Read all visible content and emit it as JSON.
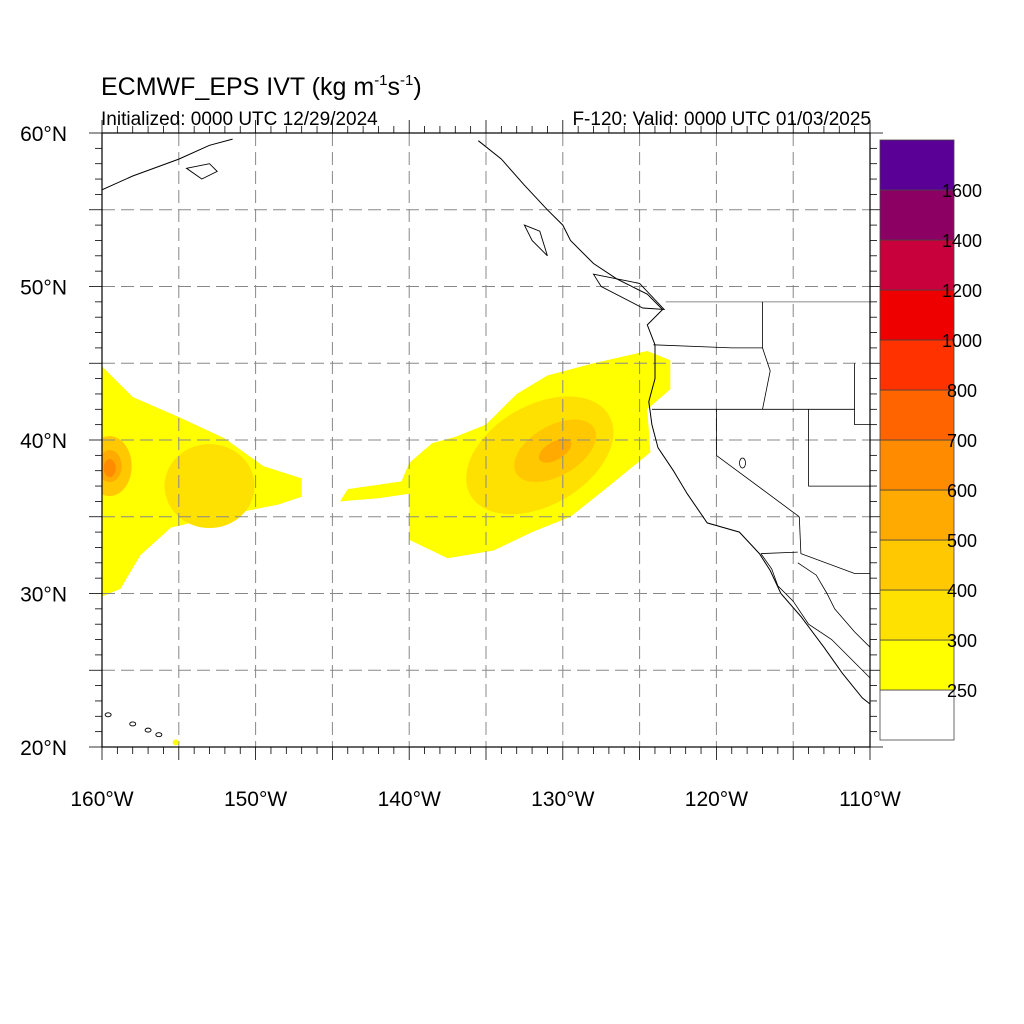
{
  "title": {
    "model": "ECMWF_EPS IVT (kg m",
    "exp1": "-1",
    "mid": "s",
    "exp2": "-1",
    "close": ")"
  },
  "subtitle": {
    "initialized": "Initialized: 0000 UTC 12/29/2024",
    "valid": "F-120: Valid: 0000 UTC 01/03/2025"
  },
  "map": {
    "lon_range": [
      -160,
      -110
    ],
    "lat_range": [
      20,
      60
    ],
    "grid_step_deg": 5,
    "x_tick_labels": [
      {
        "lon": -160,
        "label": "160°W"
      },
      {
        "lon": -150,
        "label": "150°W"
      },
      {
        "lon": -140,
        "label": "140°W"
      },
      {
        "lon": -130,
        "label": "130°W"
      },
      {
        "lon": -120,
        "label": "120°W"
      },
      {
        "lon": -110,
        "label": "110°W"
      }
    ],
    "y_tick_labels": [
      {
        "lat": 60,
        "label": "60°N"
      },
      {
        "lat": 50,
        "label": "50°N"
      },
      {
        "lat": 40,
        "label": "40°N"
      },
      {
        "lat": 30,
        "label": "30°N"
      },
      {
        "lat": 20,
        "label": "20°N"
      }
    ],
    "colorbar": {
      "labels": [
        "250",
        "300",
        "400",
        "500",
        "600",
        "700",
        "800",
        "1000",
        "1200",
        "1400",
        "1600"
      ],
      "colors": [
        "#ffffff",
        "#ffff00",
        "#ffe100",
        "#ffc800",
        "#ffaa00",
        "#ff8c00",
        "#ff6400",
        "#ff3200",
        "#ee0000",
        "#c8003c",
        "#8c0064",
        "#5a0096"
      ]
    },
    "ivt_fields": [
      {
        "name": "western-plume",
        "core": {
          "lon": -159.5,
          "lat": 38.3
        },
        "band": {
          "lon": -153,
          "lat": 37
        },
        "outer": [
          {
            "lon": -160,
            "lat": 44.8
          },
          {
            "lon": -158,
            "lat": 42.8
          },
          {
            "lon": -155,
            "lat": 41.5
          },
          {
            "lon": -152,
            "lat": 40.1
          },
          {
            "lon": -149.5,
            "lat": 38.3
          },
          {
            "lon": -147,
            "lat": 37.5
          },
          {
            "lon": -147,
            "lat": 36.3
          },
          {
            "lon": -148.5,
            "lat": 35.8
          },
          {
            "lon": -152,
            "lat": 35.1
          },
          {
            "lon": -155.5,
            "lat": 34.3
          },
          {
            "lon": -157.5,
            "lat": 32.5
          },
          {
            "lon": -158.8,
            "lat": 30.3
          },
          {
            "lon": -160,
            "lat": 29.8
          }
        ]
      },
      {
        "name": "eastern-river",
        "core": {
          "lon": -130.5,
          "lat": 39.3
        },
        "band": {
          "lon": -131.5,
          "lat": 39
        },
        "outer": [
          {
            "lon": -135,
            "lat": 41
          },
          {
            "lon": -133,
            "lat": 43
          },
          {
            "lon": -131,
            "lat": 44.2
          },
          {
            "lon": -128,
            "lat": 45
          },
          {
            "lon": -124.5,
            "lat": 45.8
          },
          {
            "lon": -123,
            "lat": 45.2
          },
          {
            "lon": -123,
            "lat": 43.3
          },
          {
            "lon": -124.5,
            "lat": 42
          },
          {
            "lon": -124.3,
            "lat": 39.2
          },
          {
            "lon": -127,
            "lat": 37
          },
          {
            "lon": -129.5,
            "lat": 35
          },
          {
            "lon": -132,
            "lat": 34
          },
          {
            "lon": -134.5,
            "lat": 32.8
          },
          {
            "lon": -137.5,
            "lat": 32.3
          },
          {
            "lon": -140,
            "lat": 33.5
          },
          {
            "lon": -140,
            "lat": 36.5
          },
          {
            "lon": -142,
            "lat": 36.2
          },
          {
            "lon": -144.5,
            "lat": 36
          },
          {
            "lon": -144,
            "lat": 36.8
          },
          {
            "lon": -140.5,
            "lat": 37.3
          },
          {
            "lon": -140,
            "lat": 38.5
          },
          {
            "lon": -138.5,
            "lat": 39.8
          },
          {
            "lon": -137,
            "lat": 40.2
          }
        ]
      }
    ],
    "coastline": [
      {
        "lon": -135.5,
        "lat": 59.5
      },
      {
        "lon": -134,
        "lat": 58.3
      },
      {
        "lon": -132.5,
        "lat": 56.6
      },
      {
        "lon": -131,
        "lat": 55
      },
      {
        "lon": -130,
        "lat": 54
      },
      {
        "lon": -129.5,
        "lat": 53
      },
      {
        "lon": -128,
        "lat": 51.5
      },
      {
        "lon": -126.5,
        "lat": 50.5
      },
      {
        "lon": -124.5,
        "lat": 49.5
      },
      {
        "lon": -123.5,
        "lat": 48.5
      },
      {
        "lon": -124.5,
        "lat": 47.5
      },
      {
        "lon": -124,
        "lat": 46.2
      },
      {
        "lon": -124,
        "lat": 44
      },
      {
        "lon": -124.4,
        "lat": 42.5
      },
      {
        "lon": -124.2,
        "lat": 41
      },
      {
        "lon": -123.8,
        "lat": 39.5
      },
      {
        "lon": -122.8,
        "lat": 38
      },
      {
        "lon": -122.5,
        "lat": 37.5
      },
      {
        "lon": -121.9,
        "lat": 36.5
      },
      {
        "lon": -120.6,
        "lat": 34.6
      },
      {
        "lon": -118.5,
        "lat": 34
      },
      {
        "lon": -117.2,
        "lat": 32.6
      },
      {
        "lon": -116.5,
        "lat": 31.5
      },
      {
        "lon": -115.8,
        "lat": 30
      },
      {
        "lon": -114.5,
        "lat": 28.5
      },
      {
        "lon": -113,
        "lat": 26.5
      },
      {
        "lon": -111.8,
        "lat": 24.8
      },
      {
        "lon": -110.5,
        "lat": 23.2
      },
      {
        "lon": -110,
        "lat": 22.8
      }
    ]
  }
}
